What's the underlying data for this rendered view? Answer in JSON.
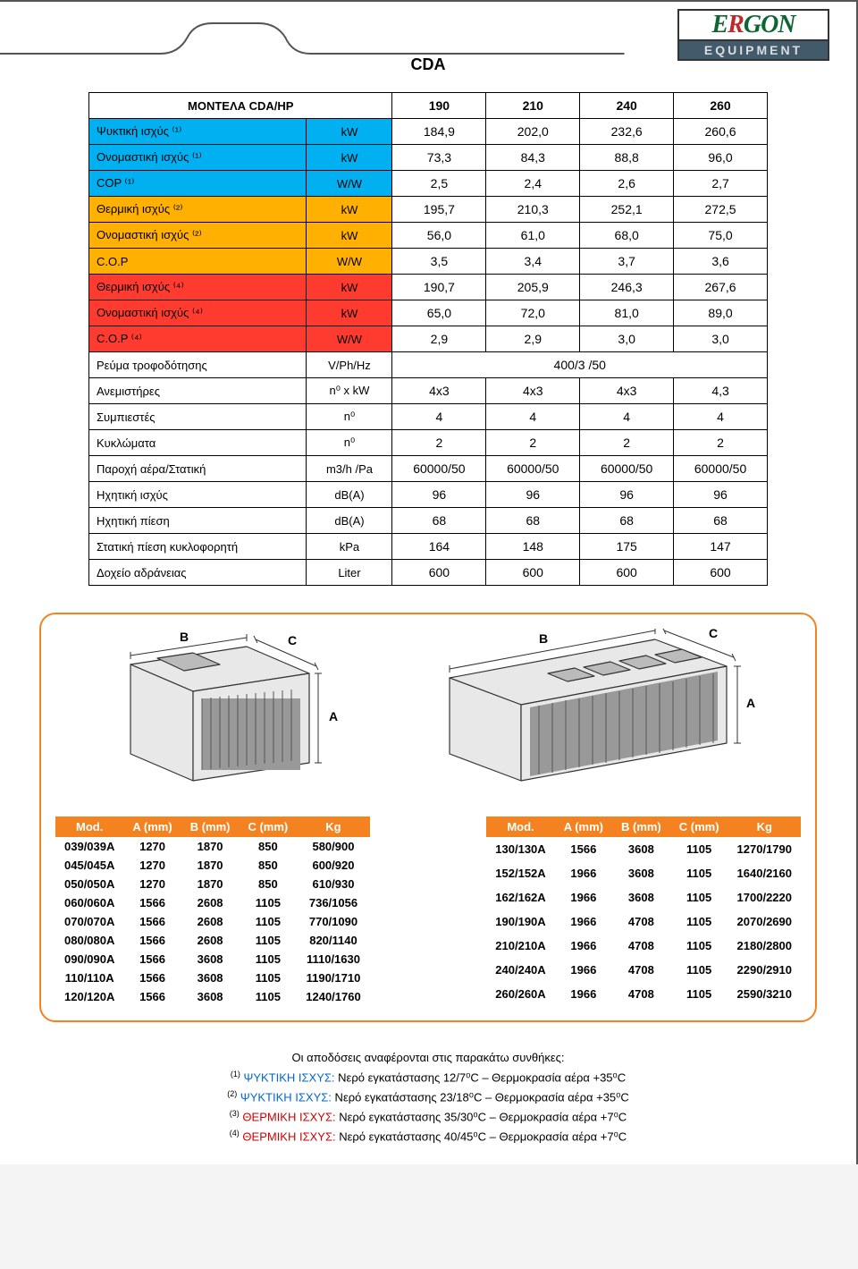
{
  "header": {
    "title": "CDA",
    "logo_top_r": "R",
    "logo_top_rest": "ERGON",
    "logo_bottom": "EQUIPMENT"
  },
  "spec_table": {
    "header_label": "ΜΟΝΤΕΛΑ CDA/HP",
    "models": [
      "190",
      "210",
      "240",
      "260"
    ],
    "sections": [
      {
        "bg": "bg-cyan",
        "rows": [
          {
            "label": "Ψυκτική ισχύς ⁽¹⁾",
            "unit": "kW",
            "vals": [
              "184,9",
              "202,0",
              "232,6",
              "260,6"
            ]
          },
          {
            "label": "Ονομαστική ισχύς ⁽¹⁾",
            "unit": "kW",
            "vals": [
              "73,3",
              "84,3",
              "88,8",
              "96,0"
            ]
          },
          {
            "label": "COP ⁽¹⁾",
            "unit": "W/W",
            "vals": [
              "2,5",
              "2,4",
              "2,6",
              "2,7"
            ]
          }
        ]
      },
      {
        "bg": "bg-orange",
        "rows": [
          {
            "label": "Θερμική ισχύς ⁽²⁾",
            "unit": "kW",
            "vals": [
              "195,7",
              "210,3",
              "252,1",
              "272,5"
            ]
          },
          {
            "label": "Ονομαστική ισχύς ⁽²⁾",
            "unit": "kW",
            "vals": [
              "56,0",
              "61,0",
              "68,0",
              "75,0"
            ]
          },
          {
            "label": "C.O.P",
            "unit": "W/W",
            "vals": [
              "3,5",
              "3,4",
              "3,7",
              "3,6"
            ]
          }
        ]
      },
      {
        "bg": "bg-red",
        "rows": [
          {
            "label": "Θερμική ισχύς ⁽⁴⁾",
            "unit": "kW",
            "vals": [
              "190,7",
              "205,9",
              "246,3",
              "267,6"
            ]
          },
          {
            "label": "Ονομαστική ισχύς ⁽⁴⁾",
            "unit": "kW",
            "vals": [
              "65,0",
              "72,0",
              "81,0",
              "89,0"
            ]
          },
          {
            "label": "C.O.P ⁽⁴⁾",
            "unit": "W/W",
            "vals": [
              "2,9",
              "2,9",
              "3,0",
              "3,0"
            ]
          }
        ]
      },
      {
        "bg": "",
        "rows": [
          {
            "label": "Ρεύμα τροφοδότησης",
            "unit": "V/Ph/Hz",
            "span": "400/3 /50"
          },
          {
            "label": "Ανεμιστήρες",
            "unit": "n⁰ x kW",
            "vals": [
              "4x3",
              "4x3",
              "4x3",
              "4,3"
            ]
          },
          {
            "label": "Συμπιεστές",
            "unit": "n⁰",
            "vals": [
              "4",
              "4",
              "4",
              "4"
            ]
          },
          {
            "label": "Κυκλώματα",
            "unit": "n⁰",
            "vals": [
              "2",
              "2",
              "2",
              "2"
            ]
          },
          {
            "label": "Παροχή αέρα/Στατική",
            "unit": "m3/h /Pa",
            "vals": [
              "60000/50",
              "60000/50",
              "60000/50",
              "60000/50"
            ]
          },
          {
            "label": "Ηχητική ισχύς",
            "unit": "dB(A)",
            "vals": [
              "96",
              "96",
              "96",
              "96"
            ]
          },
          {
            "label": "Ηχητική πίεση",
            "unit": "dB(A)",
            "vals": [
              "68",
              "68",
              "68",
              "68"
            ]
          },
          {
            "label": "Στατική πίεση κυκλοφορητή",
            "unit": "kPa",
            "vals": [
              "164",
              "148",
              "175",
              "147"
            ]
          },
          {
            "label": "Δοχείο αδράνειας",
            "unit": "Liter",
            "vals": [
              "600",
              "600",
              "600",
              "600"
            ]
          }
        ]
      }
    ]
  },
  "dim_tables": {
    "headers": [
      "Mod.",
      "A (mm)",
      "B (mm)",
      "C (mm)",
      "Kg"
    ],
    "left": [
      [
        "039/039A",
        "1270",
        "1870",
        "850",
        "580/900"
      ],
      [
        "045/045A",
        "1270",
        "1870",
        "850",
        "600/920"
      ],
      [
        "050/050A",
        "1270",
        "1870",
        "850",
        "610/930"
      ],
      [
        "060/060A",
        "1566",
        "2608",
        "1105",
        "736/1056"
      ],
      [
        "070/070A",
        "1566",
        "2608",
        "1105",
        "770/1090"
      ],
      [
        "080/080A",
        "1566",
        "2608",
        "1105",
        "820/1140"
      ],
      [
        "090/090A",
        "1566",
        "3608",
        "1105",
        "1110/1630"
      ],
      [
        "110/110A",
        "1566",
        "3608",
        "1105",
        "1190/1710"
      ],
      [
        "120/120A",
        "1566",
        "3608",
        "1105",
        "1240/1760"
      ]
    ],
    "right": [
      [
        "130/130A",
        "1566",
        "3608",
        "1105",
        "1270/1790"
      ],
      [
        "152/152A",
        "1966",
        "3608",
        "1105",
        "1640/2160"
      ],
      [
        "162/162A",
        "1966",
        "3608",
        "1105",
        "1700/2220"
      ],
      [
        "190/190A",
        "1966",
        "4708",
        "1105",
        "2070/2690"
      ],
      [
        "210/210A",
        "1966",
        "4708",
        "1105",
        "2180/2800"
      ],
      [
        "240/240A",
        "1966",
        "4708",
        "1105",
        "2290/2910"
      ],
      [
        "260/260A",
        "1966",
        "4708",
        "1105",
        "2590/3210"
      ]
    ]
  },
  "footnotes": {
    "intro": "Οι αποδόσεις αναφέρονται στις παρακάτω συνθήκες:",
    "lines": [
      {
        "sup": "(1)",
        "label": "ΨΥΚΤΙΚΗ ΙΣΧΥΣ:",
        "color": "blue",
        "text": "Νερό εγκατάστασης 12/7⁰C – Θερμοκρασία αέρα +35⁰C"
      },
      {
        "sup": "(2)",
        "label": "ΨΥΚΤΙΚΗ ΙΣΧΥΣ:",
        "color": "blue",
        "text": "Νερό εγκατάστασης 23/18⁰C – Θερμοκρασία αέρα +35⁰C"
      },
      {
        "sup": "(3)",
        "label": "ΘΕΡΜΙΚΗ ΙΣΧΥΣ:",
        "color": "red",
        "text": "Νερό εγκατάστασης 35/30⁰C – Θερμοκρασία αέρα +7⁰C"
      },
      {
        "sup": "(4)",
        "label": "ΘΕΡΜΙΚΗ ΙΣΧΥΣ:",
        "color": "red",
        "text": "Νερό εγκατάστασης 40/45⁰C – Θερμοκρασία αέρα +7⁰C"
      }
    ]
  },
  "diagram": {
    "left_fans": 1,
    "right_fans": 4,
    "labels": [
      "A",
      "B",
      "C"
    ]
  }
}
